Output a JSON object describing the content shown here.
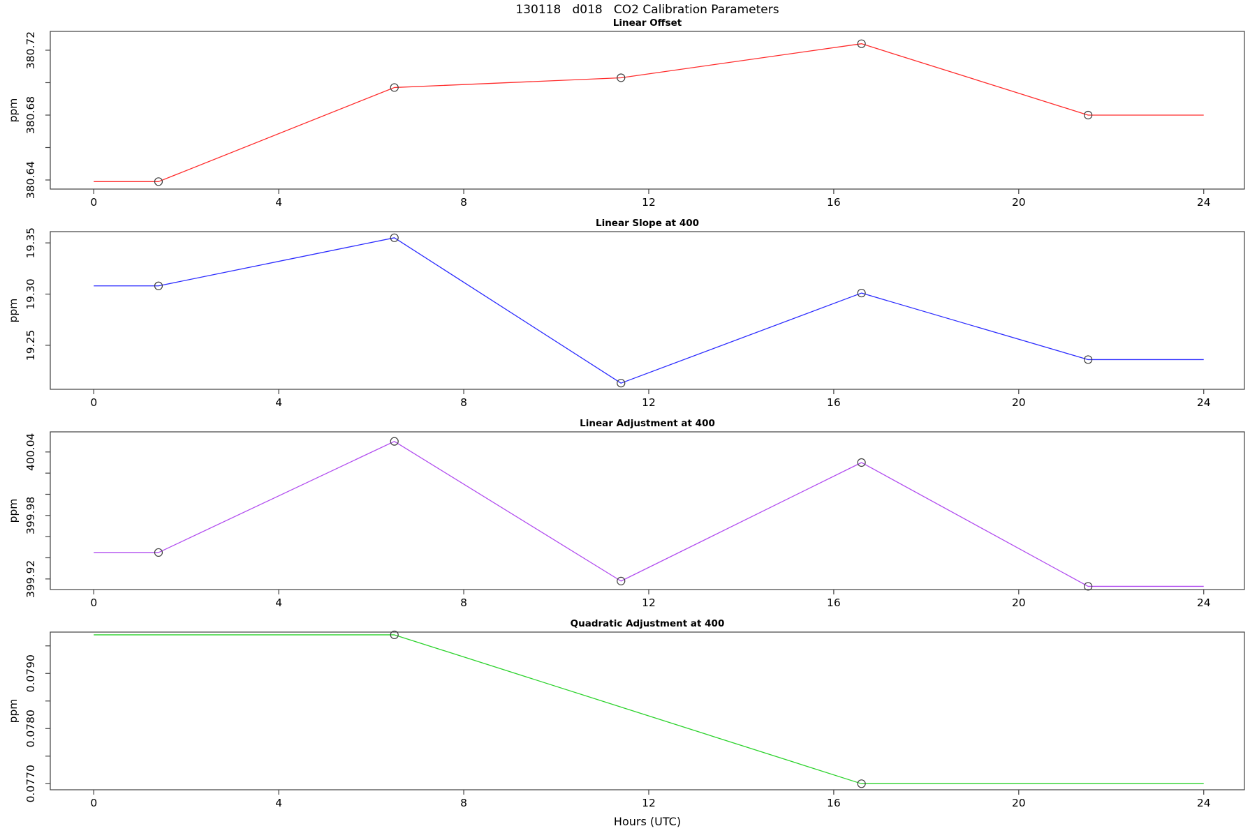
{
  "main_title": "130118   d018   CO2 Calibration Parameters",
  "x_axis": {
    "label": "Hours (UTC)",
    "ticks": [
      "0",
      "4",
      "8",
      "12",
      "16",
      "20",
      "24"
    ],
    "tick_values": [
      0,
      4,
      8,
      12,
      16,
      20,
      24
    ],
    "xlim": [
      -0.94,
      24.88
    ]
  },
  "marker_style": "open-circle",
  "axis_color": "#3f3f3f",
  "marker_color": "#3c3c3c",
  "chart_data": [
    {
      "type": "line",
      "title": "Linear Offset",
      "ylabel": "ppm",
      "color": "#ff2b2b",
      "x": [
        0,
        1.4,
        6.5,
        11.4,
        16.6,
        21.5,
        24
      ],
      "y": [
        380.639,
        380.639,
        380.697,
        380.703,
        380.724,
        380.68,
        380.68
      ],
      "marker_indices": [
        1,
        2,
        3,
        4,
        5
      ],
      "ylim": [
        380.6344,
        380.7316
      ],
      "yticks": [
        {
          "v": 380.64,
          "label": "380.64"
        },
        {
          "v": 380.66,
          "label": ""
        },
        {
          "v": 380.68,
          "label": "380.68"
        },
        {
          "v": 380.7,
          "label": ""
        },
        {
          "v": 380.72,
          "label": "380.72"
        }
      ]
    },
    {
      "type": "line",
      "title": "Linear Slope at 400",
      "ylabel": "ppm",
      "color": "#2b2bff",
      "x": [
        0,
        1.4,
        6.5,
        11.4,
        16.6,
        21.5,
        24
      ],
      "y": [
        19.308,
        19.308,
        19.355,
        19.213,
        19.301,
        19.236,
        19.236
      ],
      "marker_indices": [
        1,
        2,
        3,
        4,
        5
      ],
      "ylim": [
        19.207,
        19.361
      ],
      "yticks": [
        {
          "v": 19.25,
          "label": "19.25"
        },
        {
          "v": 19.3,
          "label": "19.30"
        },
        {
          "v": 19.35,
          "label": "19.35"
        }
      ]
    },
    {
      "type": "line",
      "title": "Linear Adjustment at 400",
      "ylabel": "ppm",
      "color": "#b14cef",
      "x": [
        0,
        1.4,
        6.5,
        11.4,
        16.6,
        21.5,
        24
      ],
      "y": [
        399.945,
        399.945,
        400.05,
        399.918,
        400.03,
        399.913,
        399.913
      ],
      "marker_indices": [
        1,
        2,
        3,
        4,
        5
      ],
      "ylim": [
        399.91,
        400.059
      ],
      "yticks": [
        {
          "v": 399.92,
          "label": "399.92"
        },
        {
          "v": 399.94,
          "label": ""
        },
        {
          "v": 399.96,
          "label": ""
        },
        {
          "v": 399.98,
          "label": "399.98"
        },
        {
          "v": 400.0,
          "label": ""
        },
        {
          "v": 400.02,
          "label": ""
        },
        {
          "v": 400.04,
          "label": "400.04"
        }
      ]
    },
    {
      "type": "line",
      "title": "Quadratic Adjustment at 400",
      "ylabel": "ppm",
      "color": "#2bd22b",
      "x": [
        0,
        6.5,
        16.6,
        24
      ],
      "y": [
        0.0797,
        0.0797,
        0.077,
        0.077
      ],
      "marker_indices": [
        1,
        2
      ],
      "ylim": [
        0.07689,
        0.07975
      ],
      "yticks": [
        {
          "v": 0.077,
          "label": "0.0770"
        },
        {
          "v": 0.0775,
          "label": ""
        },
        {
          "v": 0.078,
          "label": "0.0780"
        },
        {
          "v": 0.0785,
          "label": ""
        },
        {
          "v": 0.079,
          "label": "0.0790"
        },
        {
          "v": 0.0795,
          "label": ""
        }
      ]
    }
  ]
}
